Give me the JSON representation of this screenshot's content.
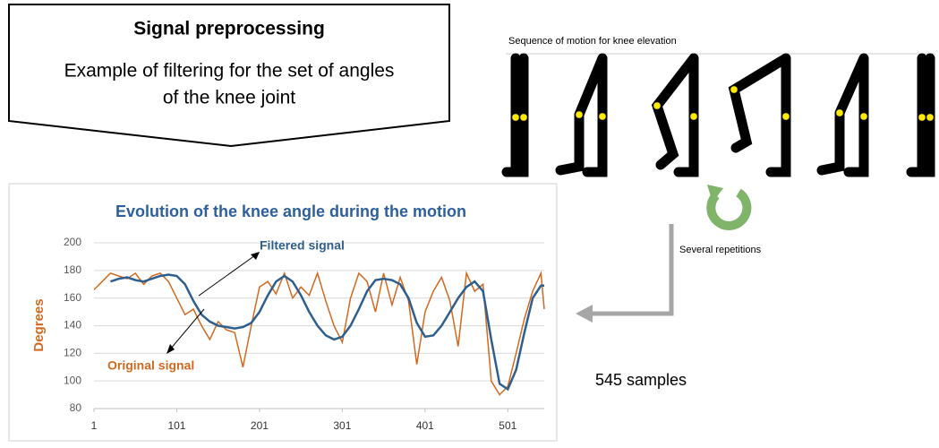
{
  "header": {
    "title": "Signal preprocessing",
    "lines": [
      "Example of filtering for the set of angles",
      "of the knee joint"
    ]
  },
  "figure": {
    "caption": "Sequence of motion for knee elevation",
    "repetitions": "Several repetitions",
    "samples": "545 samples"
  },
  "chart_data": {
    "type": "line",
    "title": "Evolution of the knee angle during the motion",
    "y_label": "Degrees",
    "x": [
      1,
      11,
      21,
      31,
      41,
      51,
      61,
      71,
      81,
      91,
      101,
      111,
      121,
      131,
      141,
      151,
      161,
      171,
      181,
      191,
      201,
      211,
      221,
      231,
      241,
      251,
      261,
      271,
      281,
      291,
      301,
      311,
      321,
      331,
      341,
      351,
      361,
      371,
      381,
      391,
      401,
      411,
      421,
      431,
      441,
      451,
      461,
      471,
      481,
      491,
      501,
      511,
      521,
      531,
      541,
      545
    ],
    "series": [
      {
        "name": "Filtered signal",
        "color": "#2e5f8e",
        "values": [
          null,
          null,
          172,
          174,
          175,
          173,
          172,
          174,
          176,
          177,
          176,
          170,
          158,
          148,
          143,
          140,
          139,
          138,
          139,
          142,
          150,
          162,
          172,
          176,
          172,
          162,
          150,
          140,
          133,
          130,
          132,
          140,
          152,
          165,
          173,
          174,
          173,
          170,
          160,
          142,
          132,
          133,
          140,
          150,
          160,
          168,
          172,
          165,
          130,
          98,
          94,
          108,
          135,
          160,
          169,
          169
        ]
      },
      {
        "name": "Original signal",
        "color": "#d2691e",
        "values": [
          166,
          172,
          178,
          176,
          174,
          178,
          170,
          176,
          178,
          172,
          160,
          148,
          152,
          140,
          130,
          143,
          137,
          135,
          110,
          140,
          168,
          172,
          163,
          178,
          160,
          168,
          162,
          178,
          158,
          140,
          128,
          160,
          178,
          172,
          150,
          178,
          155,
          175,
          158,
          112,
          150,
          165,
          175,
          158,
          125,
          178,
          165,
          170,
          100,
          90,
          96,
          120,
          145,
          165,
          178,
          152
        ]
      }
    ],
    "xlim": [
      1,
      545
    ],
    "xticks": [
      1,
      101,
      201,
      301,
      401,
      501
    ],
    "ylim": [
      80,
      200
    ],
    "yticks": [
      80,
      100,
      120,
      140,
      160,
      180,
      200
    ],
    "grid": true
  }
}
